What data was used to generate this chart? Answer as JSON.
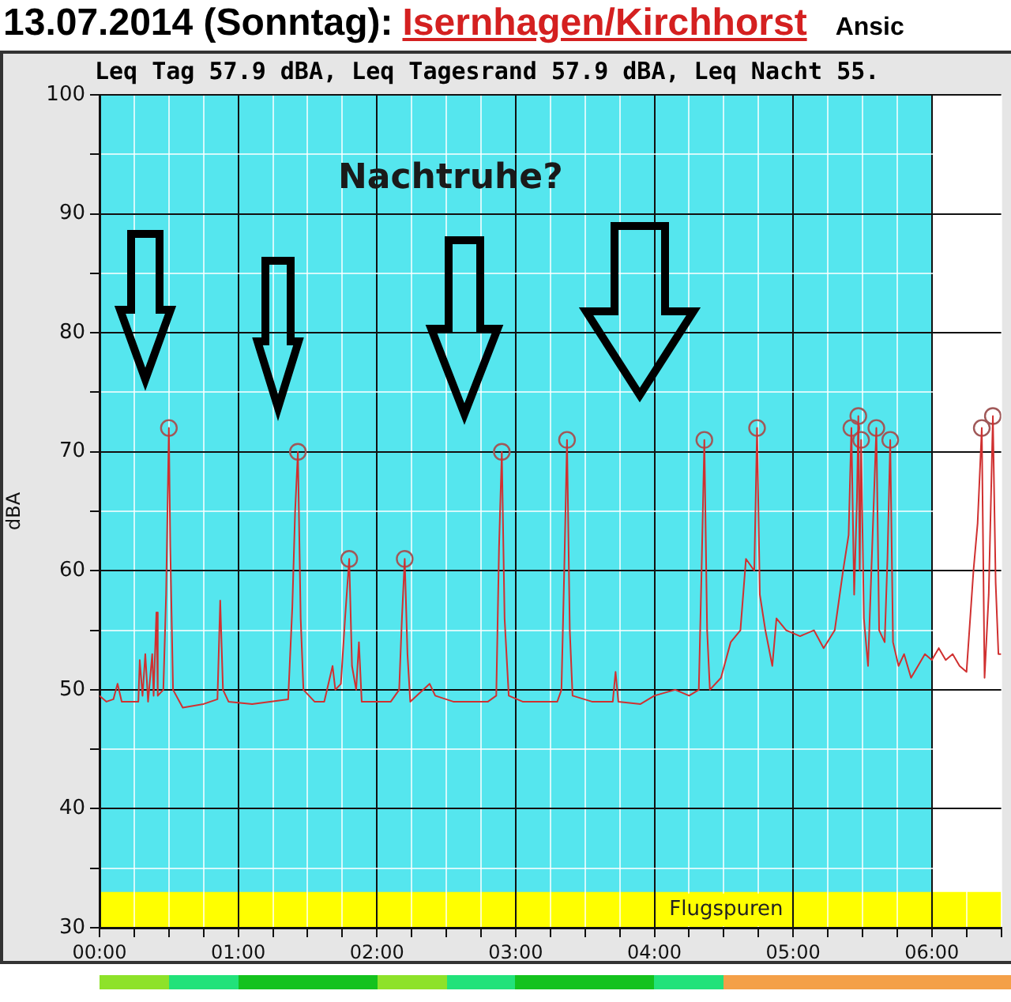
{
  "chart_data": {
    "type": "line",
    "title": "13.07.2014 (Sonntag):",
    "subtitle": "Leq Tag 57.9 dBA, Leq Tagesrand 57.9 dBA, Leq Nacht 55.",
    "ylabel": "dBA",
    "annotations": [
      "Isernhagen/Kirchhorst",
      "Ansic",
      "Nachtruhe?"
    ],
    "xlim": [
      0,
      6.5
    ],
    "xticks": [
      {
        "value": 0,
        "label": "00:00"
      },
      {
        "value": 0.25,
        "label": null
      },
      {
        "value": 0.5,
        "label": null
      },
      {
        "value": 0.75,
        "label": null
      },
      {
        "value": 1,
        "label": "01:00"
      },
      {
        "value": 1.25,
        "label": null
      },
      {
        "value": 1.5,
        "label": null
      },
      {
        "value": 1.75,
        "label": null
      },
      {
        "value": 2,
        "label": "02:00"
      },
      {
        "value": 2.25,
        "label": null
      },
      {
        "value": 2.5,
        "label": null
      },
      {
        "value": 2.75,
        "label": null
      },
      {
        "value": 3,
        "label": "03:00"
      },
      {
        "value": 3.25,
        "label": null
      },
      {
        "value": 3.5,
        "label": null
      },
      {
        "value": 3.75,
        "label": null
      },
      {
        "value": 4,
        "label": "04:00"
      },
      {
        "value": 4.25,
        "label": null
      },
      {
        "value": 4.5,
        "label": null
      },
      {
        "value": 4.75,
        "label": null
      },
      {
        "value": 5,
        "label": "05:00"
      },
      {
        "value": 5.25,
        "label": null
      },
      {
        "value": 5.5,
        "label": null
      },
      {
        "value": 5.75,
        "label": null
      },
      {
        "value": 6,
        "label": "06:00"
      },
      {
        "value": 6.25,
        "label": null
      },
      {
        "value": 6.5,
        "label": null
      }
    ],
    "ylim": [
      30,
      100
    ],
    "yticks": [
      30,
      {
        "value": 35,
        "label": null
      },
      40,
      {
        "value": 45,
        "label": null
      },
      50,
      {
        "value": 55,
        "label": null
      },
      60,
      {
        "value": 65,
        "label": null
      },
      70,
      {
        "value": 75,
        "label": null
      },
      80,
      {
        "value": 85,
        "label": null
      },
      90,
      {
        "value": 95,
        "label": null
      },
      100
    ],
    "grid": true,
    "legend": false,
    "bands": [
      {
        "axis": "x",
        "from": 0,
        "to": 6,
        "color": "#55e6ee"
      },
      {
        "axis": "y",
        "from": 30,
        "to": 33,
        "label": "Flugspuren",
        "color": "#ffff00"
      }
    ],
    "series": [
      {
        "type": "line",
        "color": "#d03030",
        "marker": "none",
        "x": [
          0,
          0.05,
          0.1,
          0.13,
          0.16,
          0.28,
          0.29,
          0.31,
          0.33,
          0.35,
          0.38,
          0.39,
          0.41,
          0.42,
          0.46,
          0.48,
          0.5,
          0.51,
          0.53,
          0.6,
          0.75,
          0.85,
          0.87,
          0.89,
          0.93,
          1.1,
          1.36,
          1.39,
          1.41,
          1.43,
          1.45,
          1.47,
          1.55,
          1.62,
          1.68,
          1.7,
          1.74,
          1.77,
          1.8,
          1.82,
          1.85,
          1.87,
          1.89,
          2.1,
          2.16,
          2.18,
          2.2,
          2.22,
          2.24,
          2.38,
          2.42,
          2.55,
          2.8,
          2.86,
          2.88,
          2.9,
          2.92,
          2.95,
          3.05,
          3.3,
          3.33,
          3.35,
          3.37,
          3.39,
          3.41,
          3.55,
          3.7,
          3.72,
          3.74,
          3.9,
          4,
          4.15,
          4.25,
          4.32,
          4.34,
          4.36,
          4.38,
          4.4,
          4.48,
          4.55,
          4.62,
          4.66,
          4.72,
          4.74,
          4.76,
          4.8,
          4.85,
          4.88,
          4.95,
          5.05,
          5.15,
          5.22,
          5.3,
          5.36,
          5.4,
          5.42,
          5.44,
          5.46,
          5.47,
          5.48,
          5.49,
          5.51,
          5.54,
          5.57,
          5.6,
          5.62,
          5.66,
          5.68,
          5.7,
          5.72,
          5.76,
          5.8,
          5.85,
          5.9,
          5.95,
          6,
          6.05,
          6.1,
          6.15,
          6.2,
          6.25,
          6.3,
          6.33,
          6.36,
          6.38,
          6.41,
          6.44,
          6.46,
          6.48,
          6.5
        ],
        "values": [
          49.5,
          49,
          49.2,
          50.5,
          49,
          49,
          52.5,
          49.5,
          53,
          49,
          53,
          49.5,
          56.5,
          49.5,
          50,
          58,
          72,
          62,
          50,
          48.5,
          48.8,
          49.2,
          57.5,
          50,
          49,
          48.8,
          49.2,
          57,
          65,
          70,
          56,
          50,
          49,
          49,
          52,
          50,
          50.5,
          56,
          61,
          52,
          50,
          54,
          49,
          49,
          50,
          56,
          61,
          53,
          49,
          50.5,
          49.5,
          49,
          49,
          49.5,
          62,
          70,
          56,
          49.5,
          49,
          49,
          50,
          60,
          71,
          55,
          49.5,
          49,
          49,
          51.5,
          49,
          48.8,
          49.5,
          50,
          49.5,
          50,
          60,
          71,
          55,
          50,
          51,
          54,
          55,
          61,
          60,
          72,
          58,
          55,
          52,
          56,
          55,
          54.5,
          55,
          53.5,
          55,
          60,
          63,
          72,
          58,
          66,
          73,
          60,
          71,
          56,
          52,
          62,
          72,
          55,
          54,
          61,
          71,
          54,
          52,
          53,
          51,
          52,
          53,
          52.5,
          53.5,
          52.5,
          53,
          52,
          51.5,
          60,
          64,
          72,
          51,
          58,
          73,
          59,
          53,
          53
        ]
      },
      {
        "type": "scatter",
        "color": "#a05858",
        "marker": "circle",
        "x": [
          0.5,
          1.43,
          1.8,
          2.2,
          2.9,
          3.37,
          4.36,
          4.74,
          5.42,
          5.47,
          5.49,
          5.6,
          5.7,
          6.36,
          6.44
        ],
        "values": [
          72,
          70,
          61,
          61,
          70,
          71,
          71,
          72,
          72,
          73,
          71,
          72,
          71,
          72,
          73
        ]
      }
    ]
  }
}
